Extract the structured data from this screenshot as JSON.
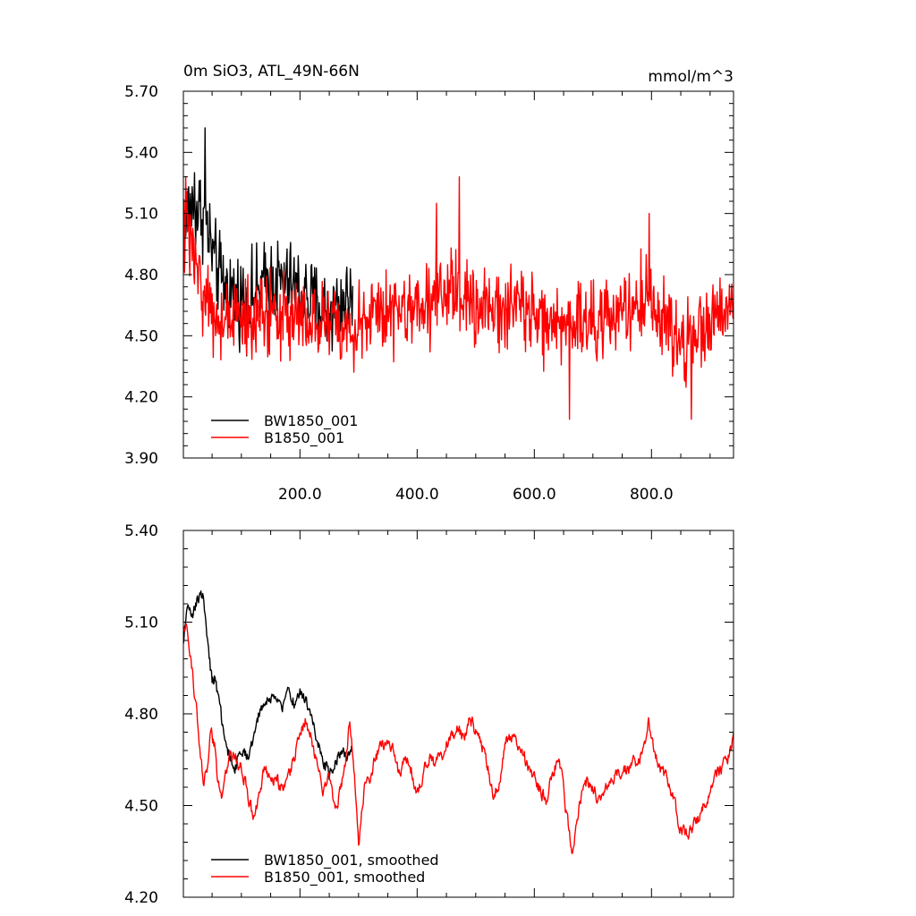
{
  "chart_data": [
    {
      "type": "line",
      "title": "0m SiO3, ATL_49N-66N",
      "units": "mmol/m^3",
      "xlabel": "",
      "ylabel": "",
      "xlim": [
        1,
        940
      ],
      "ylim": [
        3.9,
        5.7
      ],
      "x_ticks": [
        200,
        400,
        600,
        800
      ],
      "x_tick_labels": [
        "200.0",
        "400.0",
        "600.0",
        "800.0"
      ],
      "y_ticks": [
        3.9,
        4.2,
        4.5,
        4.8,
        5.1,
        5.4,
        5.7
      ],
      "y_tick_labels": [
        "3.90",
        "4.20",
        "4.50",
        "4.80",
        "5.10",
        "5.40",
        "5.70"
      ],
      "legend_position": "bottom-left",
      "series": [
        {
          "name": "BW1850_001",
          "color": "#000000",
          "x_range": [
            1,
            290
          ],
          "anchors": [
            [
              1,
              4.95
            ],
            [
              10,
              5.15
            ],
            [
              20,
              5.1
            ],
            [
              30,
              5.12
            ],
            [
              40,
              5.05
            ],
            [
              55,
              4.85
            ],
            [
              70,
              4.75
            ],
            [
              90,
              4.7
            ],
            [
              110,
              4.68
            ],
            [
              130,
              4.72
            ],
            [
              150,
              4.78
            ],
            [
              170,
              4.76
            ],
            [
              190,
              4.74
            ],
            [
              210,
              4.7
            ],
            [
              230,
              4.64
            ],
            [
              250,
              4.62
            ],
            [
              270,
              4.66
            ],
            [
              290,
              4.7
            ]
          ],
          "spread": 0.18,
          "spikes": [
            [
              38,
              5.52
            ],
            [
              20,
              5.3
            ]
          ]
        },
        {
          "name": "B1850_001",
          "color": "#ff0000",
          "x_range": [
            1,
            940
          ],
          "anchors": [
            [
              1,
              5.05
            ],
            [
              15,
              4.95
            ],
            [
              35,
              4.7
            ],
            [
              55,
              4.6
            ],
            [
              80,
              4.58
            ],
            [
              110,
              4.56
            ],
            [
              140,
              4.62
            ],
            [
              170,
              4.62
            ],
            [
              200,
              4.6
            ],
            [
              230,
              4.55
            ],
            [
              260,
              4.55
            ],
            [
              290,
              4.5
            ],
            [
              320,
              4.6
            ],
            [
              350,
              4.63
            ],
            [
              380,
              4.62
            ],
            [
              420,
              4.66
            ],
            [
              460,
              4.7
            ],
            [
              500,
              4.67
            ],
            [
              540,
              4.62
            ],
            [
              580,
              4.64
            ],
            [
              620,
              4.58
            ],
            [
              650,
              4.52
            ],
            [
              680,
              4.55
            ],
            [
              710,
              4.58
            ],
            [
              740,
              4.62
            ],
            [
              770,
              4.63
            ],
            [
              790,
              4.7
            ],
            [
              820,
              4.58
            ],
            [
              840,
              4.45
            ],
            [
              870,
              4.48
            ],
            [
              900,
              4.55
            ],
            [
              920,
              4.6
            ],
            [
              940,
              4.68
            ]
          ],
          "spread": 0.17,
          "spikes": [
            [
              472,
              5.28
            ],
            [
              433,
              5.15
            ],
            [
              796,
              5.1
            ],
            [
              660,
              4.09
            ],
            [
              868,
              4.09
            ],
            [
              5,
              5.28
            ]
          ]
        }
      ]
    },
    {
      "type": "line",
      "title": "",
      "xlabel": "",
      "ylabel": "",
      "xlim": [
        1,
        940
      ],
      "ylim": [
        4.2,
        5.4
      ],
      "x_ticks": [
        200,
        400,
        600,
        800
      ],
      "x_tick_labels": [],
      "y_ticks": [
        4.2,
        4.5,
        4.8,
        5.1,
        5.4
      ],
      "y_tick_labels": [
        "4.20",
        "4.50",
        "4.80",
        "5.10",
        "5.40"
      ],
      "legend_position": "bottom-left",
      "series": [
        {
          "name": "BW1850_001, smoothed",
          "color": "#000000",
          "x_range": [
            1,
            290
          ],
          "anchors": [
            [
              1,
              5.02
            ],
            [
              5,
              5.12
            ],
            [
              10,
              5.15
            ],
            [
              15,
              5.1
            ],
            [
              20,
              5.14
            ],
            [
              25,
              5.17
            ],
            [
              30,
              5.2
            ],
            [
              35,
              5.18
            ],
            [
              40,
              5.1
            ],
            [
              45,
              4.98
            ],
            [
              50,
              4.9
            ],
            [
              55,
              4.92
            ],
            [
              60,
              4.85
            ],
            [
              65,
              4.8
            ],
            [
              70,
              4.72
            ],
            [
              80,
              4.66
            ],
            [
              90,
              4.63
            ],
            [
              100,
              4.68
            ],
            [
              110,
              4.66
            ],
            [
              120,
              4.72
            ],
            [
              130,
              4.8
            ],
            [
              140,
              4.84
            ],
            [
              150,
              4.85
            ],
            [
              160,
              4.86
            ],
            [
              170,
              4.82
            ],
            [
              180,
              4.88
            ],
            [
              190,
              4.84
            ],
            [
              200,
              4.87
            ],
            [
              210,
              4.84
            ],
            [
              220,
              4.78
            ],
            [
              230,
              4.72
            ],
            [
              240,
              4.64
            ],
            [
              250,
              4.6
            ],
            [
              260,
              4.65
            ],
            [
              270,
              4.68
            ],
            [
              280,
              4.67
            ],
            [
              290,
              4.7
            ]
          ],
          "noise": 0.018
        },
        {
          "name": "B1850_001, smoothed",
          "color": "#ff0000",
          "x_range": [
            1,
            940
          ],
          "anchors": [
            [
              1,
              5.06
            ],
            [
              6,
              5.09
            ],
            [
              12,
              5.0
            ],
            [
              18,
              4.9
            ],
            [
              24,
              4.8
            ],
            [
              30,
              4.68
            ],
            [
              36,
              4.57
            ],
            [
              42,
              4.62
            ],
            [
              48,
              4.74
            ],
            [
              54,
              4.7
            ],
            [
              60,
              4.58
            ],
            [
              66,
              4.52
            ],
            [
              72,
              4.6
            ],
            [
              80,
              4.66
            ],
            [
              90,
              4.65
            ],
            [
              100,
              4.62
            ],
            [
              110,
              4.55
            ],
            [
              120,
              4.46
            ],
            [
              130,
              4.52
            ],
            [
              140,
              4.62
            ],
            [
              150,
              4.57
            ],
            [
              160,
              4.6
            ],
            [
              170,
              4.54
            ],
            [
              180,
              4.58
            ],
            [
              190,
              4.66
            ],
            [
              200,
              4.72
            ],
            [
              210,
              4.78
            ],
            [
              220,
              4.72
            ],
            [
              230,
              4.62
            ],
            [
              240,
              4.55
            ],
            [
              250,
              4.6
            ],
            [
              260,
              4.48
            ],
            [
              270,
              4.55
            ],
            [
              280,
              4.68
            ],
            [
              285,
              4.78
            ],
            [
              290,
              4.66
            ],
            [
              295,
              4.55
            ],
            [
              300,
              4.36
            ],
            [
              305,
              4.46
            ],
            [
              310,
              4.55
            ],
            [
              320,
              4.6
            ],
            [
              330,
              4.66
            ],
            [
              340,
              4.7
            ],
            [
              360,
              4.68
            ],
            [
              370,
              4.6
            ],
            [
              380,
              4.66
            ],
            [
              390,
              4.62
            ],
            [
              400,
              4.55
            ],
            [
              410,
              4.6
            ],
            [
              420,
              4.66
            ],
            [
              430,
              4.62
            ],
            [
              440,
              4.66
            ],
            [
              450,
              4.7
            ],
            [
              460,
              4.72
            ],
            [
              470,
              4.75
            ],
            [
              480,
              4.72
            ],
            [
              490,
              4.79
            ],
            [
              500,
              4.74
            ],
            [
              510,
              4.7
            ],
            [
              520,
              4.64
            ],
            [
              530,
              4.52
            ],
            [
              540,
              4.58
            ],
            [
              550,
              4.7
            ],
            [
              560,
              4.73
            ],
            [
              570,
              4.7
            ],
            [
              580,
              4.68
            ],
            [
              590,
              4.62
            ],
            [
              600,
              4.6
            ],
            [
              610,
              4.55
            ],
            [
              620,
              4.52
            ],
            [
              630,
              4.6
            ],
            [
              640,
              4.65
            ],
            [
              650,
              4.58
            ],
            [
              655,
              4.46
            ],
            [
              660,
              4.42
            ],
            [
              665,
              4.34
            ],
            [
              670,
              4.42
            ],
            [
              680,
              4.52
            ],
            [
              690,
              4.58
            ],
            [
              700,
              4.55
            ],
            [
              710,
              4.52
            ],
            [
              720,
              4.56
            ],
            [
              730,
              4.58
            ],
            [
              740,
              4.6
            ],
            [
              750,
              4.62
            ],
            [
              760,
              4.61
            ],
            [
              770,
              4.64
            ],
            [
              780,
              4.66
            ],
            [
              790,
              4.72
            ],
            [
              795,
              4.8
            ],
            [
              800,
              4.7
            ],
            [
              810,
              4.65
            ],
            [
              820,
              4.6
            ],
            [
              830,
              4.58
            ],
            [
              840,
              4.5
            ],
            [
              850,
              4.42
            ],
            [
              860,
              4.4
            ],
            [
              870,
              4.43
            ],
            [
              880,
              4.45
            ],
            [
              890,
              4.5
            ],
            [
              900,
              4.55
            ],
            [
              910,
              4.59
            ],
            [
              920,
              4.62
            ],
            [
              930,
              4.65
            ],
            [
              940,
              4.72
            ]
          ],
          "noise": 0.018
        }
      ]
    }
  ]
}
